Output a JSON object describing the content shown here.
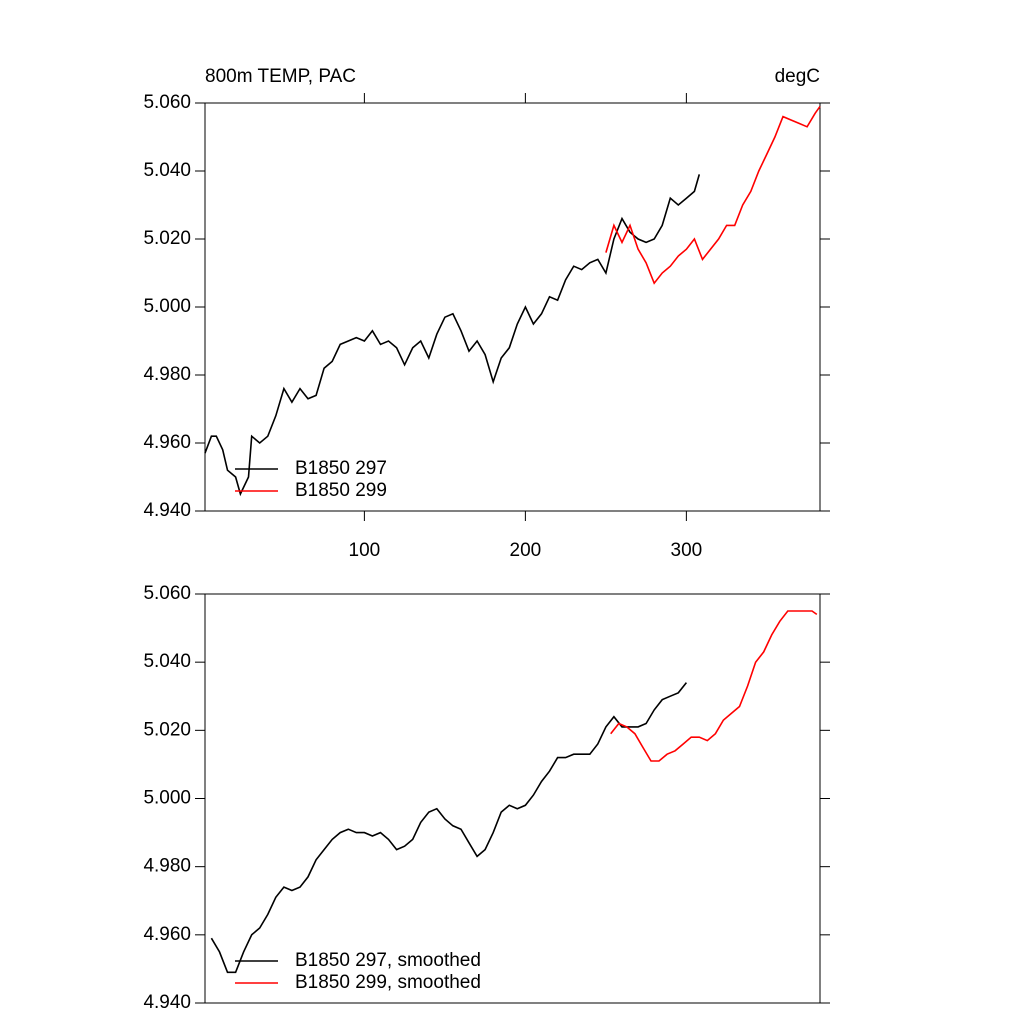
{
  "chart_data": [
    {
      "type": "line",
      "title_left": "800m TEMP, PAC",
      "title_right": "degC",
      "xlim": [
        1,
        383
      ],
      "xticks": [
        100,
        200,
        300
      ],
      "ylim": [
        4.94,
        5.06
      ],
      "yticks": [
        {
          "value": 4.94,
          "label": "4.940"
        },
        {
          "value": 4.96,
          "label": "4.960"
        },
        {
          "value": 4.98,
          "label": "4.980"
        },
        {
          "value": 5.0,
          "label": "5.000"
        },
        {
          "value": 5.02,
          "label": "5.020"
        },
        {
          "value": 5.04,
          "label": "5.040"
        },
        {
          "value": 5.06,
          "label": "5.060"
        }
      ],
      "legend": "lower-left",
      "series": [
        {
          "name": "B1850 297",
          "color": "#000000",
          "x": [
            1,
            5,
            8,
            12,
            15,
            20,
            23,
            28,
            30,
            35,
            40,
            45,
            50,
            55,
            60,
            65,
            70,
            75,
            80,
            85,
            90,
            95,
            100,
            105,
            110,
            115,
            120,
            125,
            130,
            135,
            140,
            145,
            150,
            155,
            160,
            165,
            170,
            175,
            180,
            185,
            190,
            195,
            200,
            205,
            210,
            215,
            220,
            225,
            230,
            235,
            240,
            245,
            250,
            255,
            260,
            265,
            270,
            275,
            280,
            285,
            290,
            295,
            300,
            305,
            308
          ],
          "values": [
            4.957,
            4.962,
            4.962,
            4.958,
            4.952,
            4.95,
            4.945,
            4.95,
            4.962,
            4.96,
            4.962,
            4.968,
            4.976,
            4.972,
            4.976,
            4.973,
            4.974,
            4.982,
            4.984,
            4.989,
            4.99,
            4.991,
            4.99,
            4.993,
            4.989,
            4.99,
            4.988,
            4.983,
            4.988,
            4.99,
            4.985,
            4.992,
            4.997,
            4.998,
            4.993,
            4.987,
            4.99,
            4.986,
            4.978,
            4.985,
            4.988,
            4.995,
            5.0,
            4.995,
            4.998,
            5.003,
            5.002,
            5.008,
            5.012,
            5.011,
            5.013,
            5.014,
            5.01,
            5.02,
            5.026,
            5.022,
            5.02,
            5.019,
            5.02,
            5.024,
            5.032,
            5.03,
            5.032,
            5.034,
            5.039
          ]
        },
        {
          "name": "B1850 299",
          "color": "#ff0000",
          "x": [
            250,
            255,
            260,
            265,
            270,
            275,
            280,
            285,
            290,
            295,
            300,
            305,
            310,
            315,
            320,
            325,
            330,
            335,
            340,
            345,
            350,
            355,
            360,
            365,
            370,
            375,
            380,
            383
          ],
          "values": [
            5.016,
            5.024,
            5.019,
            5.024,
            5.017,
            5.013,
            5.007,
            5.01,
            5.012,
            5.015,
            5.017,
            5.02,
            5.014,
            5.017,
            5.02,
            5.024,
            5.024,
            5.03,
            5.034,
            5.04,
            5.045,
            5.05,
            5.056,
            5.055,
            5.054,
            5.053,
            5.057,
            5.059
          ]
        }
      ]
    },
    {
      "type": "line",
      "xlim": [
        1,
        383
      ],
      "ylim": [
        4.94,
        5.06
      ],
      "yticks": [
        {
          "value": 4.94,
          "label": "4.940"
        },
        {
          "value": 4.96,
          "label": "4.960"
        },
        {
          "value": 4.98,
          "label": "4.980"
        },
        {
          "value": 5.0,
          "label": "5.000"
        },
        {
          "value": 5.02,
          "label": "5.020"
        },
        {
          "value": 5.04,
          "label": "5.040"
        },
        {
          "value": 5.06,
          "label": "5.060"
        }
      ],
      "legend": "lower-left",
      "series": [
        {
          "name": "B1850 297, smoothed",
          "color": "#000000",
          "x": [
            5,
            10,
            15,
            20,
            25,
            30,
            35,
            40,
            45,
            50,
            55,
            60,
            65,
            70,
            75,
            80,
            85,
            90,
            95,
            100,
            105,
            110,
            115,
            120,
            125,
            130,
            135,
            140,
            145,
            150,
            155,
            160,
            165,
            170,
            175,
            180,
            185,
            190,
            195,
            200,
            205,
            210,
            215,
            220,
            225,
            230,
            235,
            240,
            245,
            250,
            255,
            260,
            265,
            270,
            275,
            280,
            285,
            290,
            295,
            300
          ],
          "values": [
            4.959,
            4.955,
            4.949,
            4.949,
            4.955,
            4.96,
            4.962,
            4.966,
            4.971,
            4.974,
            4.973,
            4.974,
            4.977,
            4.982,
            4.985,
            4.988,
            4.99,
            4.991,
            4.99,
            4.99,
            4.989,
            4.99,
            4.988,
            4.985,
            4.986,
            4.988,
            4.993,
            4.996,
            4.997,
            4.994,
            4.992,
            4.991,
            4.987,
            4.983,
            4.985,
            4.99,
            4.996,
            4.998,
            4.997,
            4.998,
            5.001,
            5.005,
            5.008,
            5.012,
            5.012,
            5.013,
            5.013,
            5.013,
            5.016,
            5.021,
            5.024,
            5.021,
            5.021,
            5.021,
            5.022,
            5.026,
            5.029,
            5.03,
            5.031,
            5.034
          ]
        },
        {
          "name": "B1850 299, smoothed",
          "color": "#ff0000",
          "x": [
            253,
            258,
            263,
            268,
            273,
            278,
            283,
            288,
            293,
            298,
            303,
            308,
            313,
            318,
            323,
            328,
            333,
            338,
            343,
            348,
            353,
            358,
            363,
            368,
            373,
            378,
            381
          ],
          "values": [
            5.019,
            5.022,
            5.021,
            5.019,
            5.015,
            5.011,
            5.011,
            5.013,
            5.014,
            5.016,
            5.018,
            5.018,
            5.017,
            5.019,
            5.023,
            5.025,
            5.027,
            5.033,
            5.04,
            5.043,
            5.048,
            5.052,
            5.055,
            5.055,
            5.055,
            5.055,
            5.054
          ]
        }
      ]
    }
  ]
}
